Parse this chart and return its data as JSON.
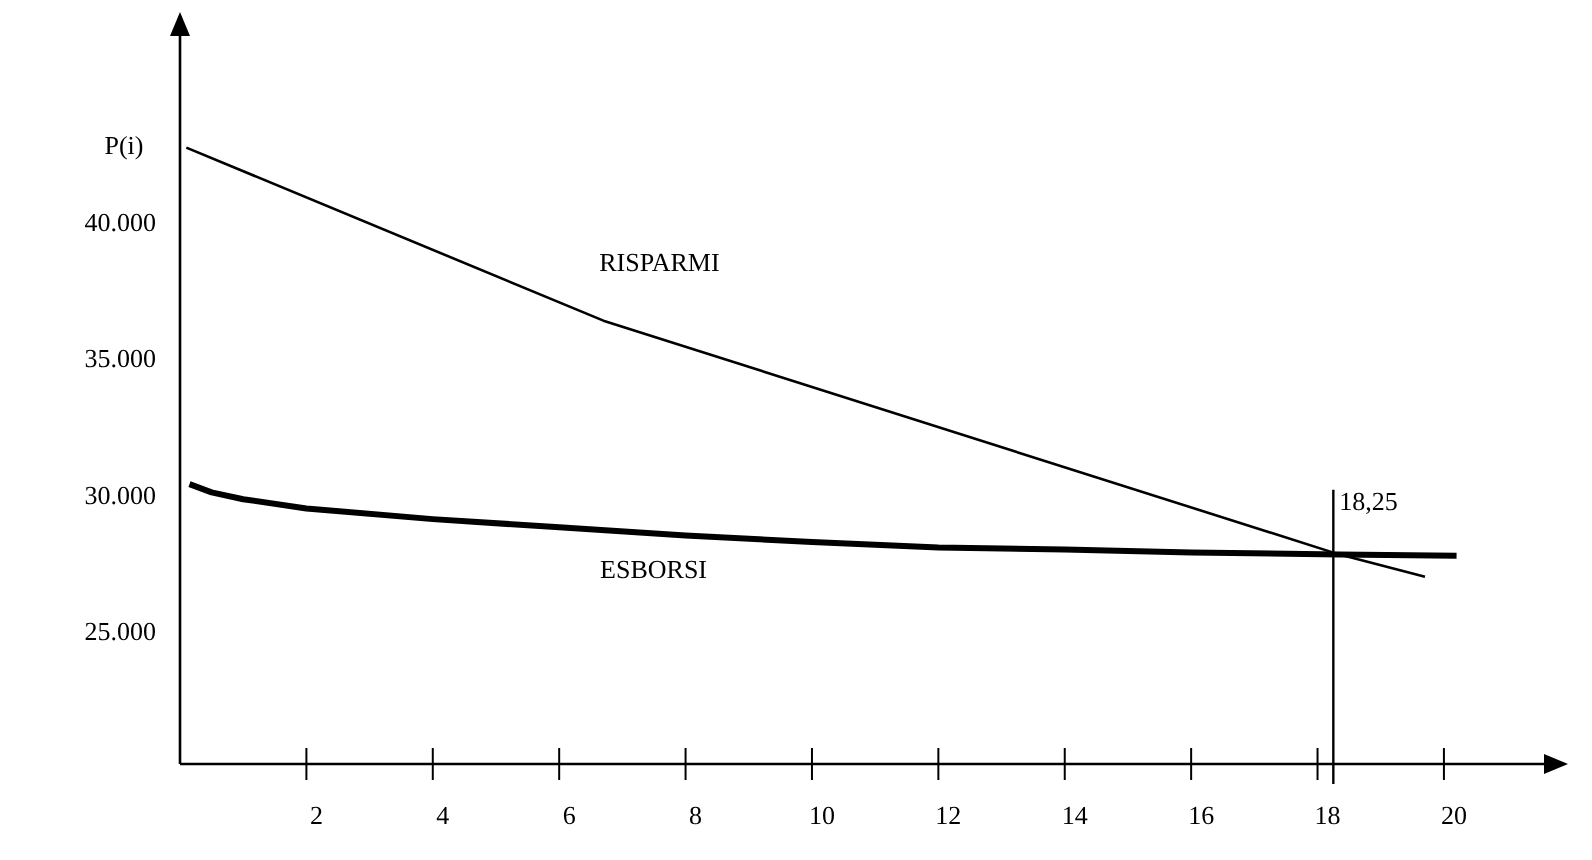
{
  "chart_data": {
    "type": "line",
    "ylabel": "P(i)",
    "xlim": [
      0,
      21.9
    ],
    "ylim": [
      20100,
      47500
    ],
    "xticks": [
      2,
      4,
      6,
      8,
      10,
      12,
      14,
      16,
      18,
      20
    ],
    "yticks": [
      {
        "value": 25000,
        "label": "25.000"
      },
      {
        "value": 30000,
        "label": "30.000"
      },
      {
        "value": 35000,
        "label": "35.000"
      },
      {
        "value": 40000,
        "label": "40.000"
      }
    ],
    "series": [
      {
        "name": "RISPARMI",
        "color": "#000000",
        "x": [
          0.1,
          6.7,
          18.35,
          19.7
        ],
        "values": [
          42680,
          36340,
          27770,
          26960
        ]
      },
      {
        "name": "ESBORSI",
        "color": "#000000",
        "x": [
          0.15,
          0.5,
          1,
          2,
          4,
          6,
          8,
          10,
          12,
          14,
          16,
          18.35,
          20.2
        ],
        "values": [
          30350,
          30050,
          29800,
          29460,
          29070,
          28770,
          28470,
          28230,
          28030,
          27960,
          27850,
          27770,
          27730
        ]
      }
    ],
    "ref_lines": [
      {
        "axis": "x",
        "value": 18.25,
        "label": "18,25",
        "color": "#000000"
      }
    ],
    "grid": false,
    "line_style": "solid"
  }
}
